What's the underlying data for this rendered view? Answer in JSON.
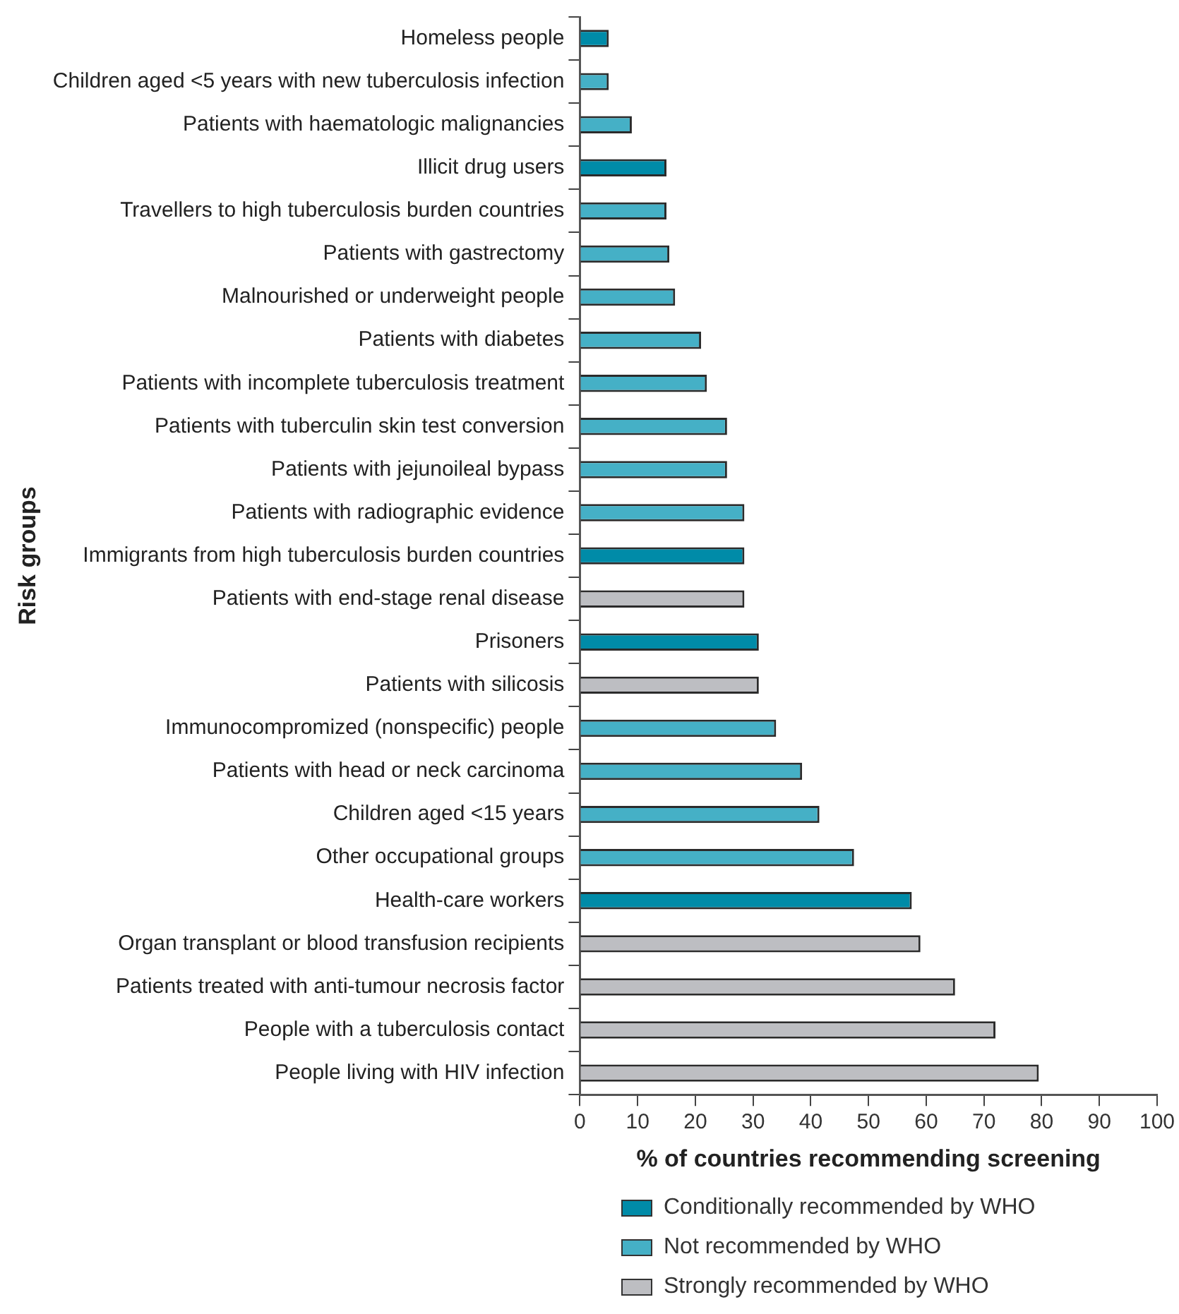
{
  "chart_data": {
    "type": "bar",
    "orientation": "horizontal",
    "xlabel": "% of countries recommending screening",
    "ylabel": "Risk groups",
    "categories": [
      "Homeless people",
      "Children aged <5 years with new tuberculosis infection",
      "Patients with haematologic malignancies",
      "Illicit drug users",
      "Travellers to high tuberculosis burden countries",
      "Patients with gastrectomy",
      "Malnourished or underweight people",
      "Patients with diabetes",
      "Patients with incomplete tuberculosis treatment",
      "Patients with tuberculin skin test conversion",
      "Patients with jejunoileal bypass",
      "Patients with radiographic evidence",
      "Immigrants from high tuberculosis burden countries",
      "Patients with end-stage renal disease",
      "Prisoners",
      "Patients with silicosis",
      "Immunocompromized (nonspecific) people",
      "Patients with head or neck carcinoma",
      "Children aged <15 years",
      "Other occupational groups",
      "Health-care workers",
      "Organ transplant or blood transfusion recipients",
      "Patients treated with anti-tumour necrosis factor",
      "People with a tuberculosis contact",
      "People living with HIV infection"
    ],
    "series": [
      {
        "name": "Conditionally recommended by WHO",
        "color": "#008ba8",
        "values": [
          5,
          null,
          null,
          15,
          null,
          null,
          null,
          null,
          null,
          null,
          null,
          null,
          28.5,
          null,
          31,
          null,
          null,
          null,
          null,
          null,
          57.5,
          null,
          null,
          null,
          null
        ]
      },
      {
        "name": "Not recommended by WHO",
        "color": "#45b0c6",
        "values": [
          null,
          5,
          9,
          null,
          15,
          15.5,
          16.5,
          21,
          22,
          25.5,
          25.5,
          28.5,
          null,
          null,
          null,
          null,
          34,
          38.5,
          41.5,
          47.5,
          null,
          null,
          null,
          null,
          null
        ]
      },
      {
        "name": "Strongly recommended by WHO",
        "color": "#bdbec2",
        "values": [
          null,
          null,
          null,
          null,
          null,
          null,
          null,
          null,
          null,
          null,
          null,
          null,
          null,
          28.5,
          null,
          31,
          null,
          null,
          null,
          null,
          null,
          59,
          65,
          72,
          79.5
        ]
      }
    ],
    "xlim": [
      0,
      100
    ],
    "xticks": [
      0,
      10,
      20,
      30,
      40,
      50,
      60,
      70,
      80,
      90,
      100
    ],
    "legend": "bottom"
  }
}
